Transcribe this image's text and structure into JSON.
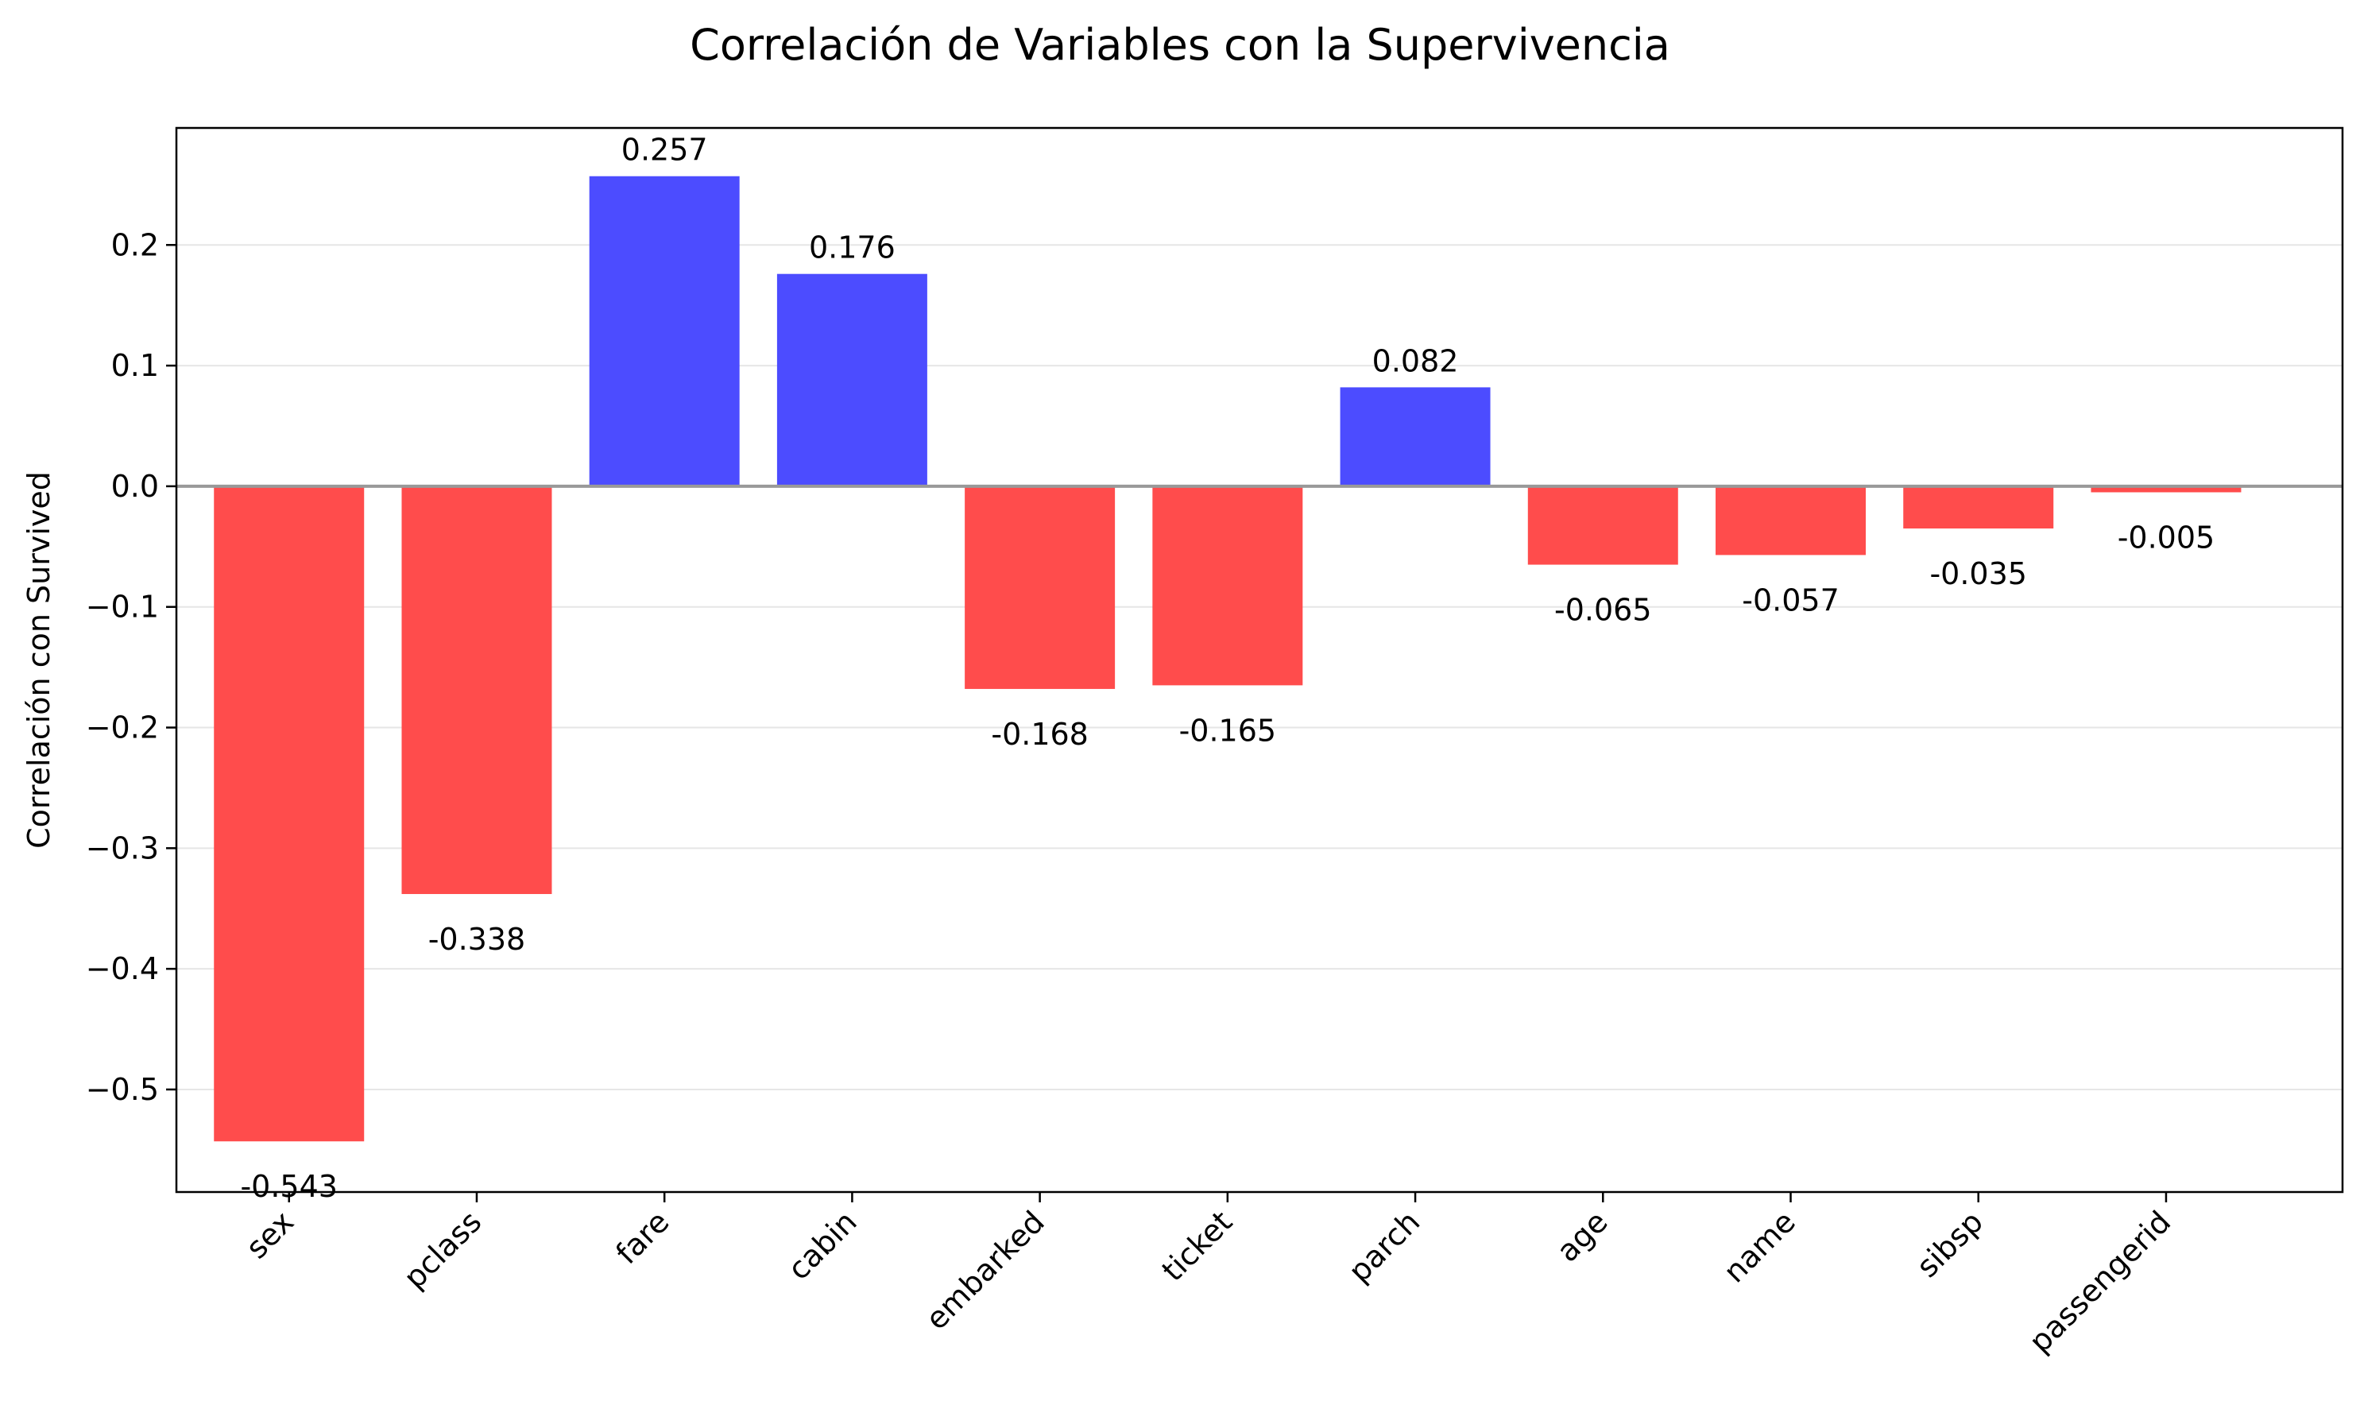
{
  "chart_data": {
    "type": "bar",
    "title": "Correlación de Variables con la Supervivencia",
    "xlabel": "",
    "ylabel": "Correlación con Survived",
    "categories": [
      "sex",
      "pclass",
      "fare",
      "cabin",
      "embarked",
      "ticket",
      "parch",
      "age",
      "name",
      "sibsp",
      "passengerid"
    ],
    "values": [
      -0.543,
      -0.338,
      0.257,
      0.176,
      -0.168,
      -0.165,
      0.082,
      -0.065,
      -0.057,
      -0.035,
      -0.005
    ],
    "value_labels": [
      "-0.543",
      "-0.338",
      "0.257",
      "0.176",
      "-0.168",
      "-0.165",
      "0.082",
      "-0.065",
      "-0.057",
      "-0.035",
      "-0.005"
    ],
    "ylim": [
      -0.585,
      0.297
    ],
    "yticks": [
      -0.5,
      -0.4,
      -0.3,
      -0.2,
      -0.1,
      0.0,
      0.1,
      0.2
    ],
    "ytick_labels": [
      "−0.5",
      "−0.4",
      "−0.3",
      "−0.2",
      "−0.1",
      "0.0",
      "0.1",
      "0.2"
    ],
    "grid": "horizontal",
    "colors": {
      "positive": "#4c4cff",
      "negative": "#ff4c4c",
      "zero_line": "#999999",
      "grid": "#e6e6e6"
    }
  }
}
